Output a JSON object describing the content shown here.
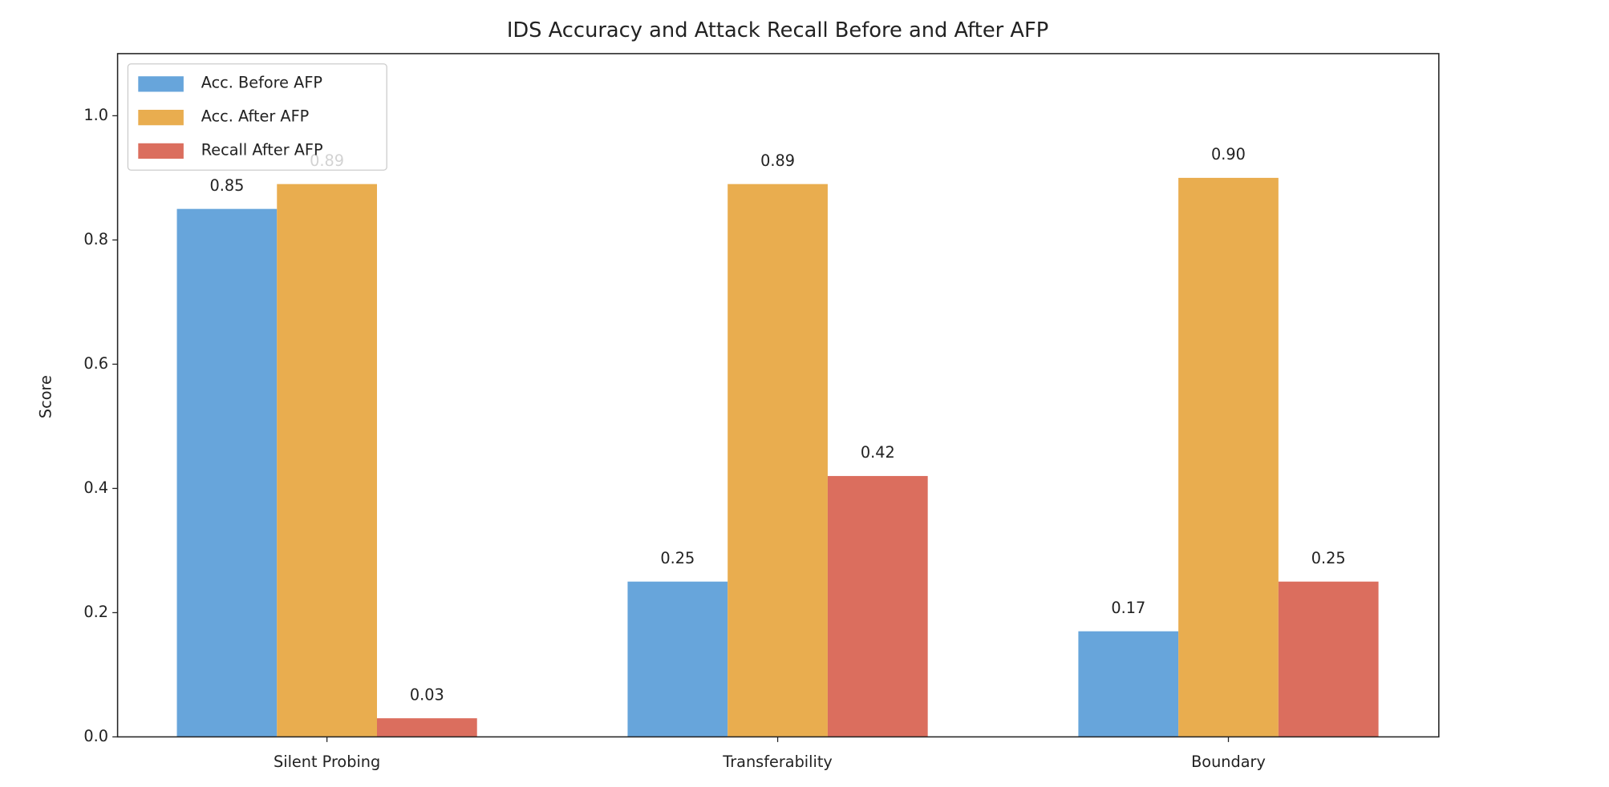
{
  "chart_data": {
    "type": "bar",
    "title": "IDS Accuracy and Attack Recall Before and After AFP",
    "y_label": "Score",
    "categories": [
      "Silent Probing",
      "Transferability",
      "Boundary"
    ],
    "series": [
      {
        "name": "Acc. Before AFP",
        "color": "#67a5db",
        "values": [
          0.85,
          0.25,
          0.17
        ],
        "value_labels": [
          "0.85",
          "0.25",
          "0.17"
        ]
      },
      {
        "name": "Acc. After AFP",
        "color": "#e9ad4f",
        "values": [
          0.89,
          0.89,
          0.9
        ],
        "value_labels": [
          "0.89",
          "0.89",
          "0.90"
        ]
      },
      {
        "name": "Recall After AFP",
        "color": "#db6e5e",
        "values": [
          0.03,
          0.42,
          0.25
        ],
        "value_labels": [
          "0.03",
          "0.42",
          "0.25"
        ]
      }
    ],
    "ylim": [
      0,
      1.1
    ],
    "yticks": [
      {
        "value": 0,
        "label": "0.0"
      },
      0.2,
      0.4,
      0.6,
      0.8,
      {
        "value": 1,
        "label": "1.0"
      }
    ],
    "legend": "upper left",
    "grid": false
  }
}
